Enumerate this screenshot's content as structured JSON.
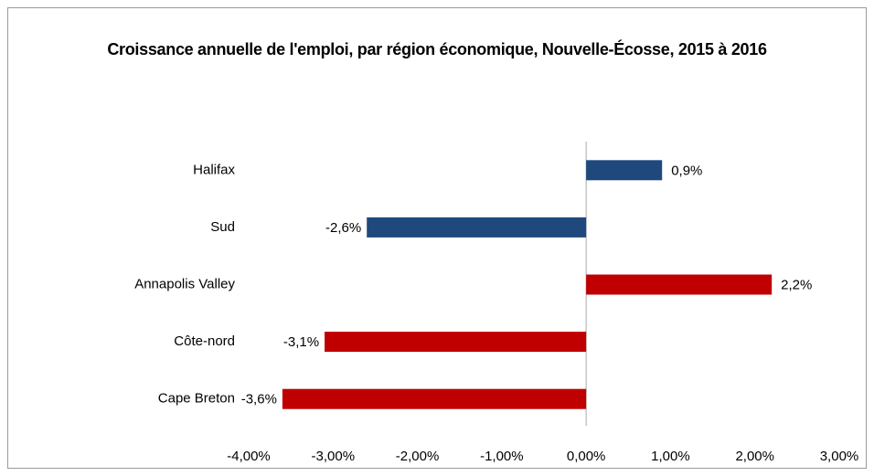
{
  "chart_data": {
    "type": "barh",
    "title": "Croissance annuelle de l'emploi, par région économique, Nouvelle-Écosse, 2015 à 2016",
    "categories": [
      "Halifax",
      "Sud",
      "Annapolis Valley",
      "Côte-nord",
      "Cape Breton"
    ],
    "values": [
      0.9,
      -2.6,
      2.2,
      -3.1,
      -3.6
    ],
    "value_labels": [
      "0,9%",
      "-2,6%",
      "2,2%",
      "-3,1%",
      "-3,6%"
    ],
    "colors": [
      "#1f497d",
      "#1f497d",
      "#c00000",
      "#c00000",
      "#c00000"
    ],
    "xlim": [
      -4,
      3
    ],
    "xticks": [
      {
        "value": -4,
        "label": "-4,00%"
      },
      {
        "value": -3,
        "label": "-3,00%"
      },
      {
        "value": -2,
        "label": "-2,00%"
      },
      {
        "value": -1,
        "label": "-1,00%"
      },
      {
        "value": 0,
        "label": "0,00%"
      },
      {
        "value": 1,
        "label": "1,00%"
      },
      {
        "value": 2,
        "label": "2,00%"
      },
      {
        "value": 3,
        "label": "3,00%"
      }
    ],
    "grid": false
  }
}
